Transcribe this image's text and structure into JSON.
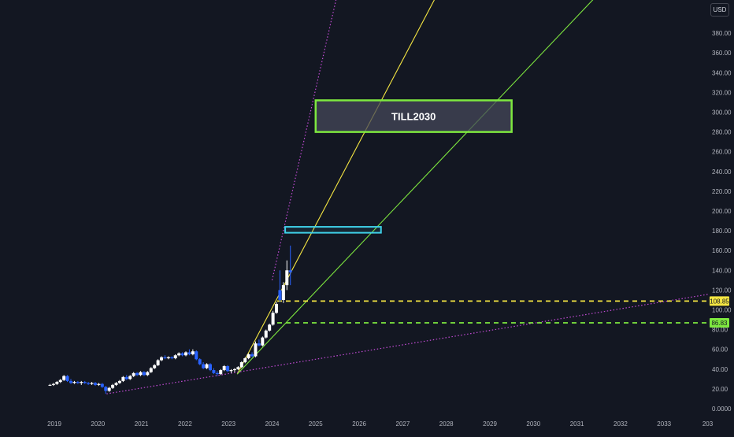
{
  "currency_label": "USD",
  "annotation_label": "TILL2030",
  "price_badges": [
    {
      "text": "108.85",
      "color": "#f5e642"
    },
    {
      "text": "86.83",
      "color": "#7ee83f"
    }
  ],
  "colors": {
    "background": "#131722",
    "axis_text": "#b2b5be",
    "up_candle": "#ffffff",
    "down_candle": "#2962ff",
    "yellow": "#f5e642",
    "green": "#7ee83f",
    "cyan": "#3fd0e8",
    "purple": "#c34bd6"
  },
  "chart_data": {
    "type": "candlestick",
    "x_ticks": [
      "2019",
      "2020",
      "2021",
      "2022",
      "2023",
      "2024",
      "2025",
      "2026",
      "2027",
      "2028",
      "2029",
      "2030",
      "2031",
      "2032",
      "2033",
      "203"
    ],
    "y_ticks": [
      "0.0000",
      "20.00",
      "40.00",
      "60.00",
      "80.00",
      "100.00",
      "120.00",
      "140.00",
      "160.00",
      "180.00",
      "200.00",
      "220.00",
      "240.00",
      "260.00",
      "280.00",
      "300.00",
      "320.00",
      "340.00",
      "360.00",
      "380.00"
    ],
    "ylim": [
      0,
      395
    ],
    "horizontal_levels": [
      {
        "value": 108.85,
        "color": "yellow",
        "style": "dashed"
      },
      {
        "value": 86.83,
        "color": "green",
        "style": "dashed"
      }
    ],
    "trendlines": [
      {
        "color": "yellow",
        "from": [
          2023.2,
          35
        ],
        "to": [
          2027.8,
          420
        ]
      },
      {
        "color": "green",
        "from": [
          2023.2,
          35
        ],
        "to": [
          2031.5,
          420
        ]
      },
      {
        "color": "purple",
        "style": "dotted",
        "from": [
          2020.2,
          15
        ],
        "to": [
          2034.6,
          120
        ]
      },
      {
        "color": "purple",
        "style": "dotted",
        "from": [
          2024.0,
          130
        ],
        "to": [
          2025.5,
          420
        ]
      }
    ],
    "rectangles": [
      {
        "color": "green",
        "x": [
          2025.0,
          2029.5
        ],
        "y": [
          280,
          312
        ],
        "label": "TILL2030"
      },
      {
        "color": "cyan",
        "x": [
          2024.3,
          2026.5
        ],
        "y": [
          178,
          184
        ]
      }
    ],
    "candles": [
      {
        "t": 2018.9,
        "o": 24,
        "h": 25,
        "l": 23,
        "c": 24
      },
      {
        "t": 2018.98,
        "o": 24,
        "h": 26,
        "l": 23,
        "c": 25
      },
      {
        "t": 2019.06,
        "o": 25,
        "h": 28,
        "l": 24,
        "c": 27
      },
      {
        "t": 2019.14,
        "o": 27,
        "h": 30,
        "l": 26,
        "c": 29
      },
      {
        "t": 2019.22,
        "o": 29,
        "h": 34,
        "l": 28,
        "c": 33
      },
      {
        "t": 2019.3,
        "o": 33,
        "h": 34,
        "l": 27,
        "c": 28
      },
      {
        "t": 2019.38,
        "o": 28,
        "h": 30,
        "l": 25,
        "c": 26
      },
      {
        "t": 2019.46,
        "o": 26,
        "h": 28,
        "l": 25,
        "c": 27
      },
      {
        "t": 2019.54,
        "o": 27,
        "h": 28,
        "l": 25,
        "c": 26
      },
      {
        "t": 2019.62,
        "o": 26,
        "h": 28,
        "l": 24,
        "c": 27
      },
      {
        "t": 2019.7,
        "o": 27,
        "h": 28,
        "l": 25,
        "c": 26
      },
      {
        "t": 2019.78,
        "o": 26,
        "h": 27,
        "l": 24,
        "c": 25
      },
      {
        "t": 2019.86,
        "o": 25,
        "h": 27,
        "l": 24,
        "c": 26
      },
      {
        "t": 2019.94,
        "o": 26,
        "h": 27,
        "l": 23,
        "c": 24
      },
      {
        "t": 2020.02,
        "o": 24,
        "h": 26,
        "l": 23,
        "c": 25
      },
      {
        "t": 2020.1,
        "o": 25,
        "h": 26,
        "l": 21,
        "c": 22
      },
      {
        "t": 2020.18,
        "o": 22,
        "h": 23,
        "l": 15,
        "c": 18
      },
      {
        "t": 2020.26,
        "o": 18,
        "h": 22,
        "l": 17,
        "c": 21
      },
      {
        "t": 2020.34,
        "o": 21,
        "h": 25,
        "l": 20,
        "c": 24
      },
      {
        "t": 2020.42,
        "o": 24,
        "h": 27,
        "l": 23,
        "c": 26
      },
      {
        "t": 2020.5,
        "o": 26,
        "h": 29,
        "l": 25,
        "c": 28
      },
      {
        "t": 2020.58,
        "o": 28,
        "h": 33,
        "l": 27,
        "c": 32
      },
      {
        "t": 2020.66,
        "o": 32,
        "h": 34,
        "l": 29,
        "c": 30
      },
      {
        "t": 2020.74,
        "o": 30,
        "h": 34,
        "l": 29,
        "c": 33
      },
      {
        "t": 2020.82,
        "o": 33,
        "h": 37,
        "l": 32,
        "c": 36
      },
      {
        "t": 2020.9,
        "o": 36,
        "h": 37,
        "l": 33,
        "c": 34
      },
      {
        "t": 2020.98,
        "o": 34,
        "h": 38,
        "l": 33,
        "c": 37
      },
      {
        "t": 2021.06,
        "o": 37,
        "h": 38,
        "l": 33,
        "c": 34
      },
      {
        "t": 2021.14,
        "o": 34,
        "h": 38,
        "l": 33,
        "c": 37
      },
      {
        "t": 2021.22,
        "o": 37,
        "h": 42,
        "l": 36,
        "c": 41
      },
      {
        "t": 2021.3,
        "o": 41,
        "h": 45,
        "l": 40,
        "c": 44
      },
      {
        "t": 2021.38,
        "o": 44,
        "h": 50,
        "l": 43,
        "c": 49
      },
      {
        "t": 2021.46,
        "o": 49,
        "h": 53,
        "l": 48,
        "c": 52
      },
      {
        "t": 2021.54,
        "o": 52,
        "h": 54,
        "l": 50,
        "c": 51
      },
      {
        "t": 2021.62,
        "o": 51,
        "h": 53,
        "l": 50,
        "c": 52
      },
      {
        "t": 2021.7,
        "o": 52,
        "h": 53,
        "l": 50,
        "c": 51
      },
      {
        "t": 2021.78,
        "o": 51,
        "h": 55,
        "l": 50,
        "c": 54
      },
      {
        "t": 2021.86,
        "o": 54,
        "h": 57,
        "l": 53,
        "c": 56
      },
      {
        "t": 2021.94,
        "o": 56,
        "h": 57,
        "l": 53,
        "c": 54
      },
      {
        "t": 2022.02,
        "o": 54,
        "h": 58,
        "l": 53,
        "c": 57
      },
      {
        "t": 2022.1,
        "o": 57,
        "h": 60,
        "l": 54,
        "c": 55
      },
      {
        "t": 2022.18,
        "o": 55,
        "h": 60,
        "l": 54,
        "c": 58
      },
      {
        "t": 2022.26,
        "o": 58,
        "h": 59,
        "l": 49,
        "c": 50
      },
      {
        "t": 2022.34,
        "o": 50,
        "h": 51,
        "l": 44,
        "c": 45
      },
      {
        "t": 2022.42,
        "o": 45,
        "h": 47,
        "l": 40,
        "c": 41
      },
      {
        "t": 2022.5,
        "o": 41,
        "h": 46,
        "l": 40,
        "c": 45
      },
      {
        "t": 2022.58,
        "o": 45,
        "h": 46,
        "l": 38,
        "c": 39
      },
      {
        "t": 2022.66,
        "o": 39,
        "h": 41,
        "l": 35,
        "c": 36
      },
      {
        "t": 2022.74,
        "o": 36,
        "h": 38,
        "l": 33,
        "c": 35
      },
      {
        "t": 2022.82,
        "o": 35,
        "h": 40,
        "l": 34,
        "c": 39
      },
      {
        "t": 2022.9,
        "o": 39,
        "h": 44,
        "l": 38,
        "c": 43
      },
      {
        "t": 2022.98,
        "o": 43,
        "h": 44,
        "l": 37,
        "c": 38
      },
      {
        "t": 2023.06,
        "o": 38,
        "h": 40,
        "l": 36,
        "c": 39
      },
      {
        "t": 2023.14,
        "o": 39,
        "h": 41,
        "l": 37,
        "c": 40
      },
      {
        "t": 2023.22,
        "o": 40,
        "h": 43,
        "l": 39,
        "c": 42
      },
      {
        "t": 2023.3,
        "o": 42,
        "h": 48,
        "l": 41,
        "c": 47
      },
      {
        "t": 2023.38,
        "o": 47,
        "h": 52,
        "l": 46,
        "c": 51
      },
      {
        "t": 2023.46,
        "o": 51,
        "h": 56,
        "l": 50,
        "c": 55
      },
      {
        "t": 2023.54,
        "o": 55,
        "h": 57,
        "l": 52,
        "c": 53
      },
      {
        "t": 2023.62,
        "o": 53,
        "h": 68,
        "l": 52,
        "c": 66
      },
      {
        "t": 2023.7,
        "o": 66,
        "h": 70,
        "l": 63,
        "c": 64
      },
      {
        "t": 2023.78,
        "o": 64,
        "h": 73,
        "l": 63,
        "c": 72
      },
      {
        "t": 2023.86,
        "o": 72,
        "h": 80,
        "l": 71,
        "c": 79
      },
      {
        "t": 2023.94,
        "o": 79,
        "h": 86,
        "l": 78,
        "c": 85
      },
      {
        "t": 2024.02,
        "o": 85,
        "h": 99,
        "l": 84,
        "c": 97
      },
      {
        "t": 2024.1,
        "o": 97,
        "h": 108,
        "l": 96,
        "c": 106
      },
      {
        "t": 2024.18,
        "o": 120,
        "h": 140,
        "l": 108,
        "c": 110
      },
      {
        "t": 2024.26,
        "o": 110,
        "h": 128,
        "l": 107,
        "c": 125
      },
      {
        "t": 2024.34,
        "o": 125,
        "h": 150,
        "l": 120,
        "c": 140
      },
      {
        "t": 2024.42,
        "o": 140,
        "h": 165,
        "l": 125,
        "c": 138
      }
    ]
  }
}
